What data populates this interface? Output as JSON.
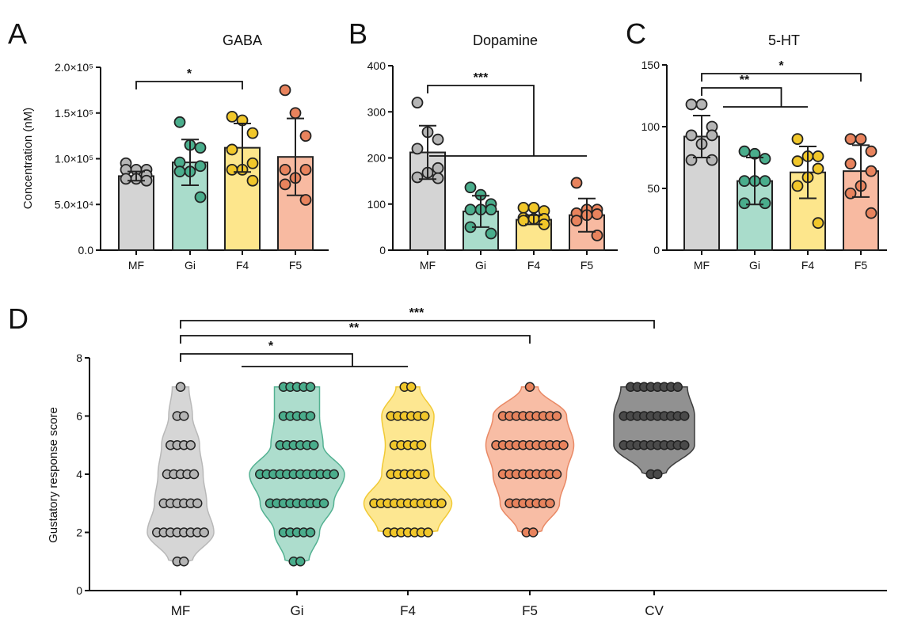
{
  "chart_data": [
    {
      "panel": "A",
      "type": "bar",
      "title": "GABA",
      "ylabel": "Concentration (nM)",
      "ylim": [
        0,
        200000
      ],
      "yticks": [
        0,
        50000,
        100000,
        150000,
        200000
      ],
      "ytick_labels": [
        "0.0",
        "5.0×10⁴",
        "1.0×10⁵",
        "1.5×10⁵",
        "2.0×10⁵"
      ],
      "categories": [
        "MF",
        "Gi",
        "F4",
        "F5"
      ],
      "means": [
        81000,
        96000,
        112000,
        102000
      ],
      "sd": [
        5000,
        25000,
        26500,
        42000
      ],
      "points": [
        [
          95000,
          88000,
          88000,
          88000,
          82000,
          78000,
          78000,
          76000
        ],
        [
          140000,
          115000,
          112000,
          96000,
          92000,
          86000,
          86000,
          58000
        ],
        [
          146000,
          142000,
          128000,
          110000,
          95000,
          88000,
          88000,
          76000
        ],
        [
          175000,
          150000,
          125000,
          88000,
          88000,
          79000,
          72000,
          55000
        ]
      ],
      "significance": [
        {
          "from": "MF",
          "to": [
            "F4"
          ],
          "label": "*"
        }
      ]
    },
    {
      "panel": "B",
      "type": "bar",
      "title": "Dopamine",
      "ylabel": "",
      "ylim": [
        0,
        400
      ],
      "yticks": [
        0,
        100,
        200,
        300,
        400
      ],
      "ytick_labels": [
        "0",
        "100",
        "200",
        "300",
        "400"
      ],
      "categories": [
        "MF",
        "Gi",
        "F4",
        "F5"
      ],
      "means": [
        212,
        84,
        66,
        76
      ],
      "sd": [
        58,
        34,
        10,
        36
      ],
      "points": [
        [
          320,
          256,
          240,
          220,
          178,
          168,
          158,
          156
        ],
        [
          136,
          120,
          100,
          88,
          88,
          88,
          50,
          36
        ],
        [
          92,
          92,
          85,
          70,
          68,
          68,
          64,
          56
        ],
        [
          146,
          88,
          88,
          80,
          78,
          76,
          64,
          32
        ]
      ],
      "significance": [
        {
          "from": "MF",
          "to": [
            "Gi",
            "F5"
          ],
          "label": "***"
        }
      ]
    },
    {
      "panel": "C",
      "type": "bar",
      "title": "5-HT",
      "ylabel": "",
      "ylim": [
        0,
        150
      ],
      "yticks": [
        0,
        50,
        100,
        150
      ],
      "ytick_labels": [
        "0",
        "50",
        "100",
        "150"
      ],
      "categories": [
        "MF",
        "Gi",
        "F4",
        "F5"
      ],
      "means": [
        92,
        56,
        63,
        64
      ],
      "sd": [
        17,
        19,
        21,
        21
      ],
      "points": [
        [
          118,
          118,
          100,
          93,
          93,
          86,
          73,
          73
        ],
        [
          80,
          78,
          74,
          56,
          56,
          56,
          38,
          38
        ],
        [
          90,
          76,
          76,
          72,
          66,
          59,
          52,
          22
        ],
        [
          90,
          90,
          80,
          70,
          64,
          52,
          46,
          30
        ]
      ],
      "significance": [
        {
          "from": "MF",
          "to": [
            "F5"
          ],
          "label": "*"
        },
        {
          "from": "MF",
          "to": [
            "Gi",
            "F4"
          ],
          "label": "**"
        }
      ]
    },
    {
      "panel": "D",
      "type": "violin",
      "ylabel": "Gustatory response score",
      "ylim": [
        0,
        8
      ],
      "yticks": [
        0,
        2,
        4,
        6,
        8
      ],
      "ytick_labels": [
        "0",
        "2",
        "4",
        "6",
        "8"
      ],
      "categories": [
        "MF",
        "Gi",
        "F4",
        "F5",
        "CV"
      ],
      "score_counts": [
        {
          "1": 2,
          "2": 8,
          "3": 6,
          "4": 5,
          "5": 4,
          "6": 2,
          "7": 1
        },
        {
          "1": 2,
          "2": 5,
          "3": 9,
          "4": 12,
          "5": 6,
          "6": 5,
          "7": 5
        },
        {
          "2": 7,
          "3": 11,
          "4": 6,
          "5": 5,
          "6": 6,
          "7": 2
        },
        {
          "2": 2,
          "3": 7,
          "4": 9,
          "5": 11,
          "6": 9,
          "7": 1
        },
        {
          "4": 2,
          "5": 10,
          "6": 10,
          "7": 8
        }
      ],
      "significance": [
        {
          "from": "MF",
          "to": [
            "CV"
          ],
          "label": "***"
        },
        {
          "from": "MF",
          "to": [
            "F5"
          ],
          "label": "**"
        },
        {
          "from": "MF",
          "to": [
            "Gi",
            "F4"
          ],
          "label": "*"
        }
      ]
    }
  ],
  "colors": {
    "MF": {
      "fill": "#d4d4d4",
      "dot": "#b5b5b5"
    },
    "Gi": {
      "fill": "#a9dccb",
      "dot": "#4aad8c"
    },
    "F4": {
      "fill": "#fde68c",
      "dot": "#f1c72a"
    },
    "F5": {
      "fill": "#f8baa1",
      "dot": "#e8835d"
    },
    "CV": {
      "fill": "#8c8c8c",
      "dot": "#4a4a4a"
    }
  }
}
